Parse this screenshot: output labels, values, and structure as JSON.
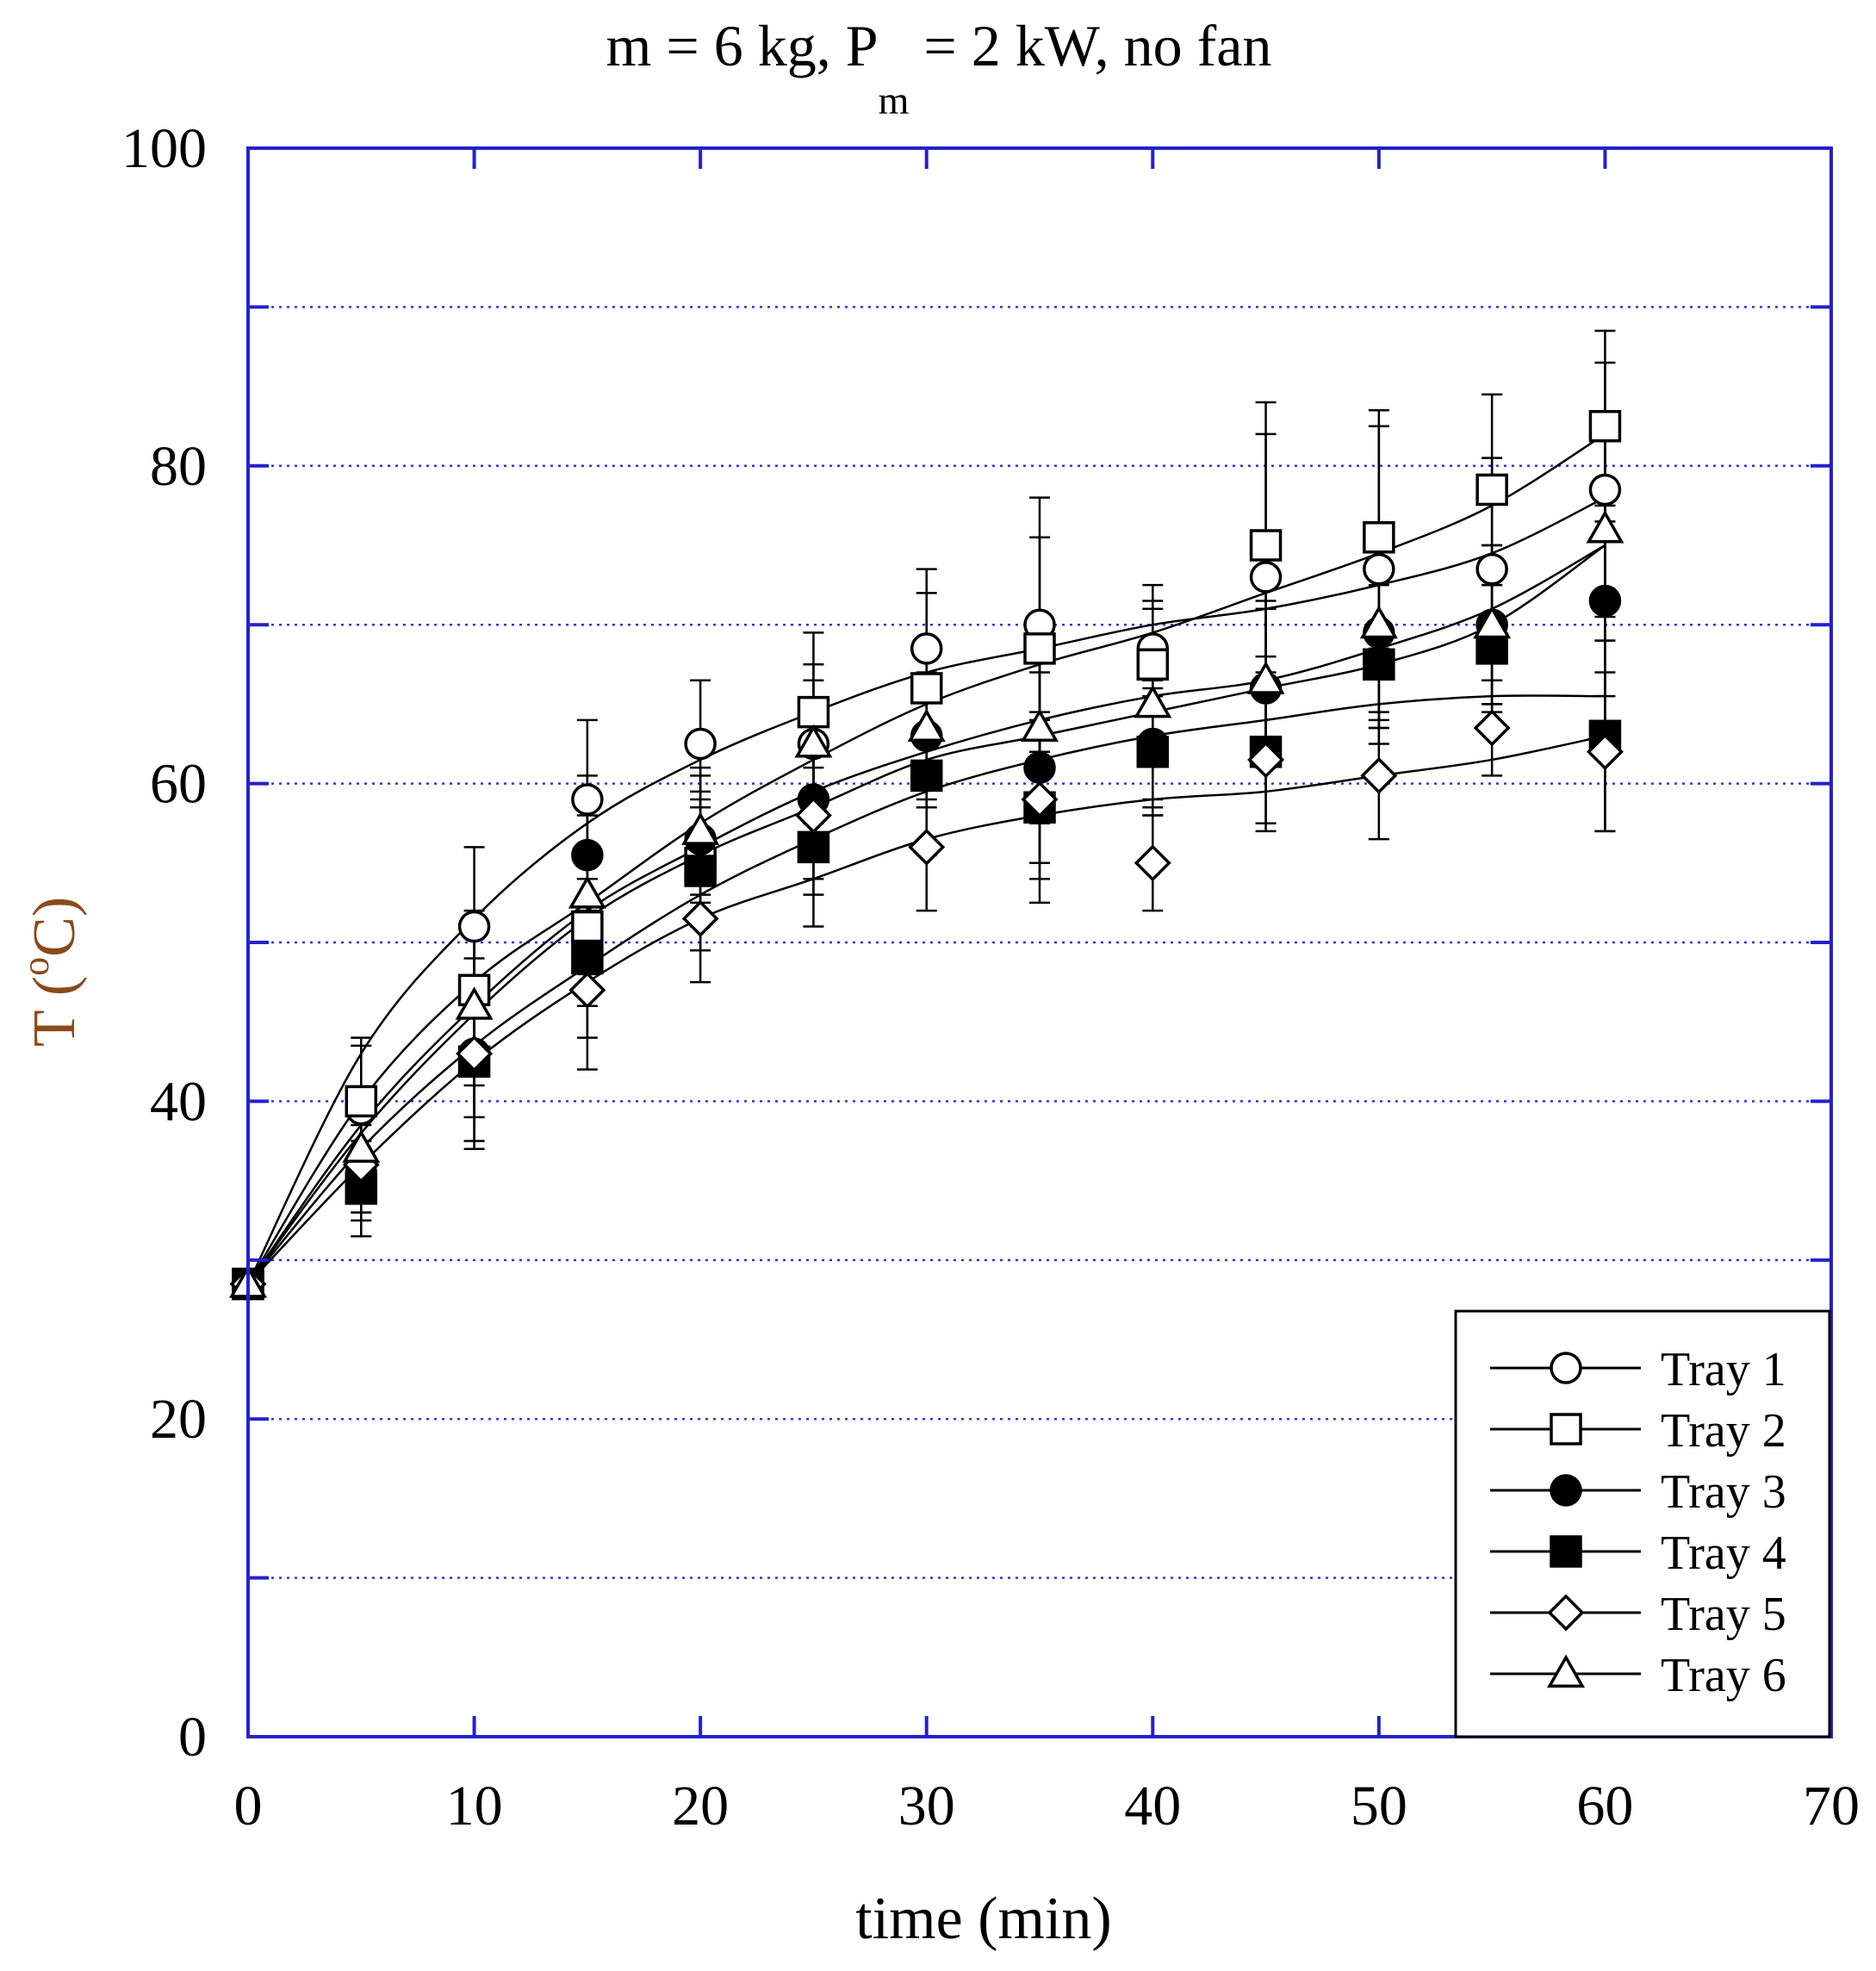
{
  "chart_data": {
    "type": "line",
    "title": {
      "prefix": "m = 6 kg, P",
      "subscript": "m",
      "suffix": " = 2 kW, no fan"
    },
    "xlabel": "time (min)",
    "ylabel": {
      "prefix": "T (",
      "superscript": "o",
      "suffix": "C)"
    },
    "xlim": [
      0,
      70
    ],
    "ylim": [
      0,
      100
    ],
    "xticks": [
      0,
      10,
      20,
      30,
      40,
      50,
      60,
      70
    ],
    "yticks": [
      0,
      20,
      40,
      60,
      80,
      100
    ],
    "ygrid": [
      10,
      20,
      30,
      40,
      50,
      60,
      70,
      80,
      90
    ],
    "grid": "horizontal dotted",
    "legend_position": "bottom-right",
    "colors": {
      "frame": "#2222cc",
      "grid": "#3333dd",
      "series": "#000000",
      "axis_label": "#8b4a1a"
    },
    "series": [
      {
        "name": "Tray 1",
        "marker": "circle-open",
        "x": [
          0,
          5,
          10,
          15,
          20,
          25,
          30,
          35,
          40,
          45,
          50,
          55,
          60
        ],
        "y": [
          28.5,
          39.5,
          51,
          59,
          62.5,
          62.5,
          68.5,
          70,
          68.5,
          73,
          73.5,
          73.5,
          78.5
        ],
        "error": [
          0,
          4,
          5,
          5,
          4,
          4,
          5,
          8,
          3,
          11,
          10,
          7,
          8
        ],
        "fit": [
          28.5,
          43,
          51.5,
          57.5,
          61.5,
          64.5,
          67,
          68.5,
          70,
          71,
          72.5,
          74.5,
          78
        ]
      },
      {
        "name": "Tray 2",
        "marker": "square-open",
        "x": [
          0,
          5,
          10,
          15,
          20,
          25,
          30,
          35,
          40,
          45,
          50,
          55,
          60
        ],
        "y": [
          28.5,
          40,
          47,
          51,
          55,
          64.5,
          66,
          68.5,
          67.5,
          75,
          75.5,
          78.5,
          82.5
        ],
        "error": [
          0,
          4,
          5,
          5,
          4,
          5,
          6,
          7,
          5,
          7,
          7,
          6,
          6
        ],
        "fit": [
          28.5,
          40,
          47.5,
          52.5,
          57.5,
          61.5,
          65,
          67.5,
          69.5,
          72,
          74.5,
          77.5,
          82
        ]
      },
      {
        "name": "Tray 3",
        "marker": "circle-filled",
        "x": [
          0,
          5,
          10,
          15,
          20,
          25,
          30,
          35,
          40,
          45,
          50,
          55,
          60
        ],
        "y": [
          28.5,
          35.5,
          43,
          55.5,
          56.5,
          59,
          63,
          61,
          62.5,
          66,
          69.5,
          70,
          71.5
        ],
        "error": [
          0,
          3,
          6,
          5,
          4,
          5,
          4,
          6,
          4,
          5,
          6,
          5,
          6
        ],
        "fit": [
          28.5,
          38,
          45.5,
          51.5,
          55.5,
          58.5,
          61.5,
          63,
          64.5,
          66,
          67.5,
          70,
          75
        ]
      },
      {
        "name": "Tray 4",
        "marker": "square-filled",
        "x": [
          0,
          5,
          10,
          15,
          20,
          25,
          30,
          35,
          40,
          45,
          50,
          55,
          60
        ],
        "y": [
          28.5,
          34.5,
          42.5,
          49,
          54.5,
          56,
          60.5,
          58.5,
          62,
          62,
          67.5,
          68.5,
          63
        ],
        "error": [
          0,
          3,
          5,
          5,
          5,
          5,
          5,
          6,
          4,
          5,
          5,
          4,
          6
        ],
        "fit": [
          28.5,
          37,
          43.5,
          48.5,
          53,
          56.5,
          59.5,
          61.5,
          63,
          64,
          65,
          65.5,
          65.5
        ]
      },
      {
        "name": "Tray 5",
        "marker": "diamond-open",
        "x": [
          0,
          5,
          10,
          15,
          20,
          25,
          30,
          35,
          40,
          45,
          50,
          55,
          60
        ],
        "y": [
          28.5,
          36,
          43,
          47,
          51.5,
          58,
          56,
          59,
          55,
          61.5,
          60.5,
          63.5,
          62
        ],
        "error": [
          0,
          3,
          4,
          5,
          4,
          5,
          4,
          5,
          3,
          4,
          4,
          3,
          5
        ],
        "fit": [
          28.5,
          36,
          42.5,
          47.5,
          51.5,
          54,
          56.5,
          58,
          59,
          59.5,
          60.5,
          61.5,
          63
        ]
      },
      {
        "name": "Tray 6",
        "marker": "triangle-open",
        "x": [
          0,
          5,
          10,
          15,
          20,
          25,
          30,
          35,
          40,
          45,
          50,
          55,
          60
        ],
        "y": [
          28.5,
          37,
          46,
          53,
          57,
          62.5,
          63.5,
          63.5,
          65,
          66.5,
          70,
          70,
          76
        ],
        "error": [
          0,
          3,
          5,
          5,
          4,
          5,
          5,
          6,
          6,
          5,
          6,
          5,
          7
        ],
        "fit": [
          28.5,
          38.5,
          46,
          52,
          56,
          59.5,
          62,
          64,
          65.5,
          66.5,
          68.5,
          71,
          75
        ]
      }
    ]
  }
}
